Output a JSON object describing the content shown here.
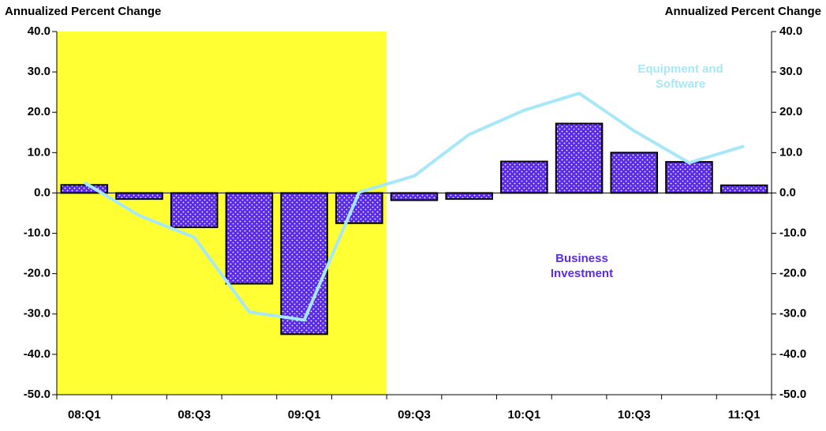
{
  "chart_data": {
    "type": "bar-line",
    "y_label": "Annualized Percent Change",
    "y2_label": "Annualized Percent Change",
    "categories": [
      "08:Q1",
      null,
      "08:Q3",
      null,
      "09:Q1",
      null,
      "09:Q3",
      null,
      "10:Q1",
      null,
      "10:Q3",
      null,
      "11:Q1"
    ],
    "series": [
      {
        "name": "Business Investment",
        "type": "bar",
        "color": "#5a2be6",
        "values": [
          2.0,
          -1.5,
          -8.5,
          -22.5,
          -35.0,
          -7.5,
          -1.8,
          -1.5,
          7.8,
          17.2,
          10.0,
          7.7,
          1.9
        ]
      },
      {
        "name": "Equipment and Software",
        "type": "line",
        "color": "#a6e8f7",
        "values": [
          2.6,
          -5.6,
          -11.0,
          -29.5,
          -31.5,
          0.2,
          4.2,
          14.5,
          20.5,
          24.7,
          15.4,
          7.5,
          11.6
        ]
      }
    ],
    "ylim": [
      -50,
      40
    ],
    "yticks": [
      {
        "value": -50,
        "label": "-50.0"
      },
      {
        "value": -40,
        "label": "-40.0"
      },
      {
        "value": -30,
        "label": "-30.0"
      },
      {
        "value": -20,
        "label": "-20.0"
      },
      {
        "value": -10,
        "label": "-10.0"
      },
      {
        "value": 0,
        "label": "0.0"
      },
      {
        "value": 10,
        "label": "10.0"
      },
      {
        "value": 20,
        "label": "20.0"
      },
      {
        "value": 30,
        "label": "30.0"
      },
      {
        "value": 40,
        "label": "40.0"
      }
    ],
    "y2lim": [
      -50,
      40
    ],
    "y2ticks": [
      {
        "value": -50,
        "label": "-50.0"
      },
      {
        "value": -40,
        "label": "-40.0"
      },
      {
        "value": -30,
        "label": "-30.0"
      },
      {
        "value": -20,
        "label": "-20.0"
      },
      {
        "value": -10,
        "label": "-10.0"
      },
      {
        "value": 0,
        "label": "0.0"
      },
      {
        "value": 10,
        "label": "10.0"
      },
      {
        "value": 20,
        "label": "20.0"
      },
      {
        "value": 30,
        "label": "30.0"
      },
      {
        "value": 40,
        "label": "40.0"
      }
    ]
  }
}
